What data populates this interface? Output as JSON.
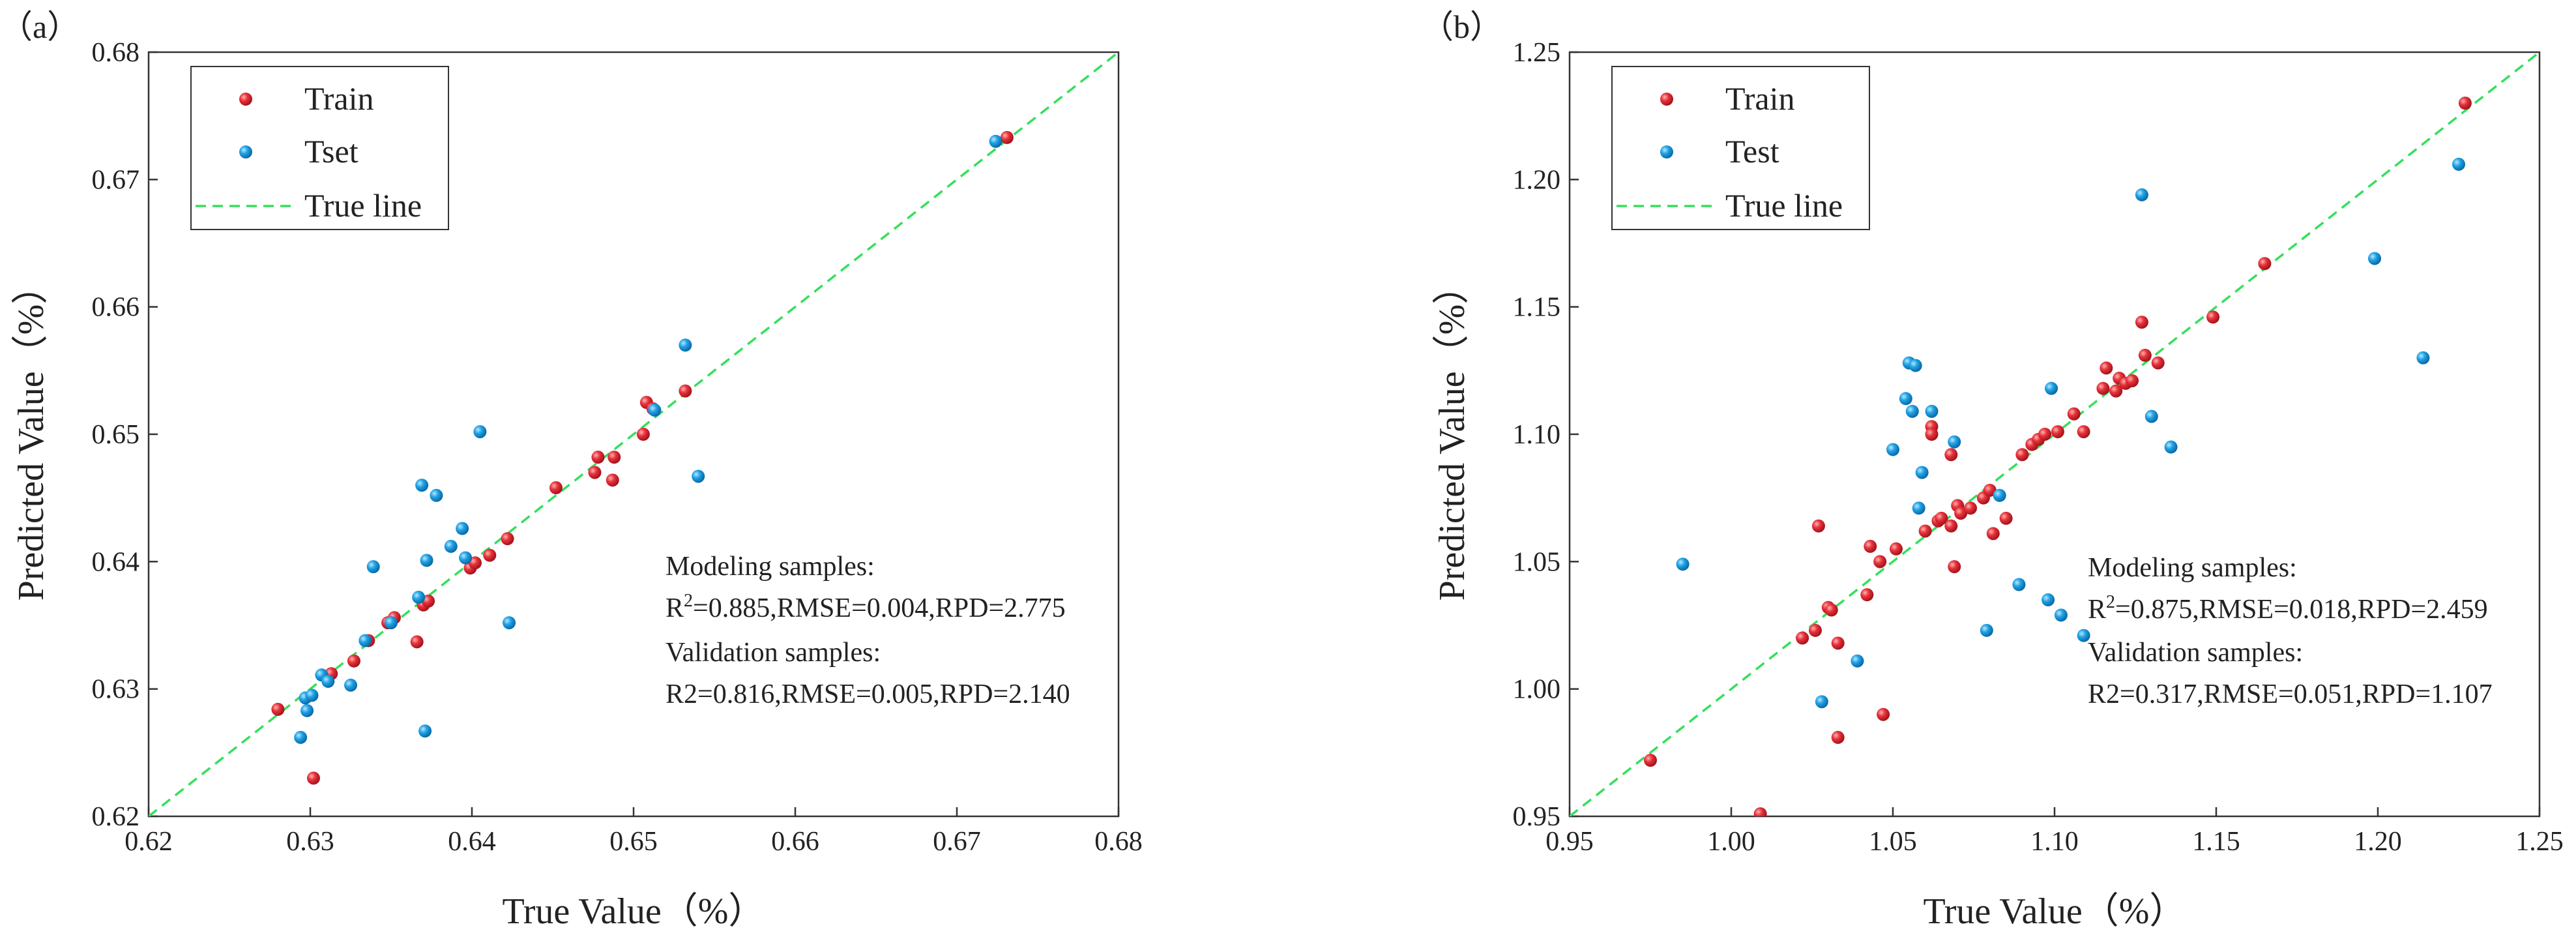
{
  "chart_data": [
    {
      "panel_label": "（a）",
      "type": "scatter",
      "xlabel": "True Value（%）",
      "ylabel": "Predicted Value（%）",
      "xlim": [
        0.62,
        0.68
      ],
      "ylim": [
        0.62,
        0.68
      ],
      "xticks": [
        "0.62",
        "0.63",
        "0.64",
        "0.65",
        "0.66",
        "0.67",
        "0.68"
      ],
      "yticks": [
        "0.62",
        "0.63",
        "0.64",
        "0.65",
        "0.66",
        "0.67",
        "0.68"
      ],
      "legend": {
        "train": "Train",
        "test": "Tset",
        "line": "True line"
      },
      "annotation": {
        "modeling_title": "Modeling samples:",
        "modeling_r2_prefix": "R",
        "modeling_r2_sup": "2",
        "modeling_rest": "=0.885,RMSE=0.004,RPD=2.775",
        "validation_title": "Validation samples:",
        "validation_stats": "R2=0.816,RMSE=0.005,RPD=2.140"
      },
      "colors": {
        "train": "#e8313a",
        "test": "#1fa2e6",
        "line": "#34e05c"
      },
      "series": [
        {
          "name": "Train",
          "points": [
            [
              0.628,
              0.6284
            ],
            [
              0.6302,
              0.623
            ],
            [
              0.6313,
              0.6312
            ],
            [
              0.6327,
              0.6322
            ],
            [
              0.6336,
              0.6338
            ],
            [
              0.6348,
              0.6352
            ],
            [
              0.6352,
              0.6356
            ],
            [
              0.6366,
              0.6337
            ],
            [
              0.637,
              0.6366
            ],
            [
              0.6373,
              0.6369
            ],
            [
              0.6399,
              0.6395
            ],
            [
              0.6402,
              0.6399
            ],
            [
              0.6411,
              0.6405
            ],
            [
              0.6422,
              0.6418
            ],
            [
              0.6452,
              0.6458
            ],
            [
              0.6476,
              0.647
            ],
            [
              0.6478,
              0.6482
            ],
            [
              0.6487,
              0.6464
            ],
            [
              0.6488,
              0.6482
            ],
            [
              0.6506,
              0.65
            ],
            [
              0.6508,
              0.6525
            ],
            [
              0.6512,
              0.652
            ],
            [
              0.6532,
              0.6534
            ],
            [
              0.6731,
              0.6733
            ]
          ]
        },
        {
          "name": "Tset",
          "points": [
            [
              0.6294,
              0.6262
            ],
            [
              0.6297,
              0.6293
            ],
            [
              0.6298,
              0.6283
            ],
            [
              0.6301,
              0.6295
            ],
            [
              0.6307,
              0.6311
            ],
            [
              0.6311,
              0.6306
            ],
            [
              0.6325,
              0.6303
            ],
            [
              0.6334,
              0.6338
            ],
            [
              0.6339,
              0.6396
            ],
            [
              0.635,
              0.6352
            ],
            [
              0.6367,
              0.6372
            ],
            [
              0.6369,
              0.646
            ],
            [
              0.6371,
              0.6267
            ],
            [
              0.6372,
              0.6401
            ],
            [
              0.6378,
              0.6452
            ],
            [
              0.6387,
              0.6412
            ],
            [
              0.6394,
              0.6426
            ],
            [
              0.6396,
              0.6403
            ],
            [
              0.6405,
              0.6502
            ],
            [
              0.6423,
              0.6352
            ],
            [
              0.6513,
              0.6519
            ],
            [
              0.6532,
              0.657
            ],
            [
              0.654,
              0.6467
            ],
            [
              0.6724,
              0.673
            ]
          ]
        }
      ]
    },
    {
      "panel_label": "（b）",
      "type": "scatter",
      "xlabel": "True Value（%）",
      "ylabel": "Predicted Value（%）",
      "xlim": [
        0.95,
        1.25
      ],
      "ylim": [
        0.95,
        1.25
      ],
      "xticks": [
        "0.95",
        "1.00",
        "1.05",
        "1.10",
        "1.15",
        "1.20",
        "1.25"
      ],
      "yticks": [
        "0.95",
        "1.00",
        "1.05",
        "1.10",
        "1.15",
        "1.20",
        "1.25"
      ],
      "legend": {
        "train": "Train",
        "test": "Test",
        "line": "True line"
      },
      "annotation": {
        "modeling_title": "Modeling samples:",
        "modeling_r2_prefix": "R",
        "modeling_r2_sup": "2",
        "modeling_rest": "=0.875,RMSE=0.018,RPD=2.459",
        "validation_title": "Validation samples:",
        "validation_stats": "R2=0.317,RMSE=0.051,RPD=1.107"
      },
      "colors": {
        "train": "#e8313a",
        "test": "#1fa2e6",
        "line": "#34e05c"
      },
      "series": [
        {
          "name": "Train",
          "points": [
            [
              0.975,
              0.972
            ],
            [
              1.009,
              0.951
            ],
            [
              1.022,
              1.02
            ],
            [
              1.026,
              1.023
            ],
            [
              1.027,
              1.064
            ],
            [
              1.03,
              1.032
            ],
            [
              1.031,
              1.031
            ],
            [
              1.033,
              1.018
            ],
            [
              1.033,
              0.981
            ],
            [
              1.042,
              1.037
            ],
            [
              1.043,
              1.056
            ],
            [
              1.046,
              1.05
            ],
            [
              1.047,
              0.99
            ],
            [
              1.051,
              1.055
            ],
            [
              1.06,
              1.062
            ],
            [
              1.062,
              1.103
            ],
            [
              1.062,
              1.1
            ],
            [
              1.064,
              1.066
            ],
            [
              1.065,
              1.067
            ],
            [
              1.068,
              1.064
            ],
            [
              1.068,
              1.092
            ],
            [
              1.069,
              1.048
            ],
            [
              1.07,
              1.072
            ],
            [
              1.071,
              1.069
            ],
            [
              1.074,
              1.071
            ],
            [
              1.078,
              1.075
            ],
            [
              1.08,
              1.078
            ],
            [
              1.081,
              1.061
            ],
            [
              1.085,
              1.067
            ],
            [
              1.09,
              1.092
            ],
            [
              1.093,
              1.096
            ],
            [
              1.095,
              1.098
            ],
            [
              1.097,
              1.1
            ],
            [
              1.101,
              1.101
            ],
            [
              1.106,
              1.108
            ],
            [
              1.109,
              1.101
            ],
            [
              1.115,
              1.118
            ],
            [
              1.116,
              1.126
            ],
            [
              1.119,
              1.117
            ],
            [
              1.12,
              1.122
            ],
            [
              1.122,
              1.12
            ],
            [
              1.124,
              1.121
            ],
            [
              1.127,
              1.144
            ],
            [
              1.128,
              1.131
            ],
            [
              1.132,
              1.128
            ],
            [
              1.149,
              1.146
            ],
            [
              1.165,
              1.167
            ],
            [
              1.227,
              1.23
            ]
          ]
        },
        {
          "name": "Test",
          "points": [
            [
              0.985,
              1.049
            ],
            [
              1.028,
              0.995
            ],
            [
              1.039,
              1.011
            ],
            [
              1.05,
              1.094
            ],
            [
              1.054,
              1.114
            ],
            [
              1.055,
              1.128
            ],
            [
              1.056,
              1.109
            ],
            [
              1.057,
              1.127
            ],
            [
              1.058,
              1.071
            ],
            [
              1.059,
              1.085
            ],
            [
              1.062,
              1.109
            ],
            [
              1.069,
              1.097
            ],
            [
              1.079,
              1.023
            ],
            [
              1.083,
              1.076
            ],
            [
              1.089,
              1.041
            ],
            [
              1.098,
              1.035
            ],
            [
              1.099,
              1.118
            ],
            [
              1.102,
              1.029
            ],
            [
              1.109,
              1.021
            ],
            [
              1.127,
              1.194
            ],
            [
              1.13,
              1.107
            ],
            [
              1.136,
              1.095
            ],
            [
              1.199,
              1.169
            ],
            [
              1.214,
              1.13
            ],
            [
              1.225,
              1.206
            ]
          ]
        }
      ]
    }
  ]
}
